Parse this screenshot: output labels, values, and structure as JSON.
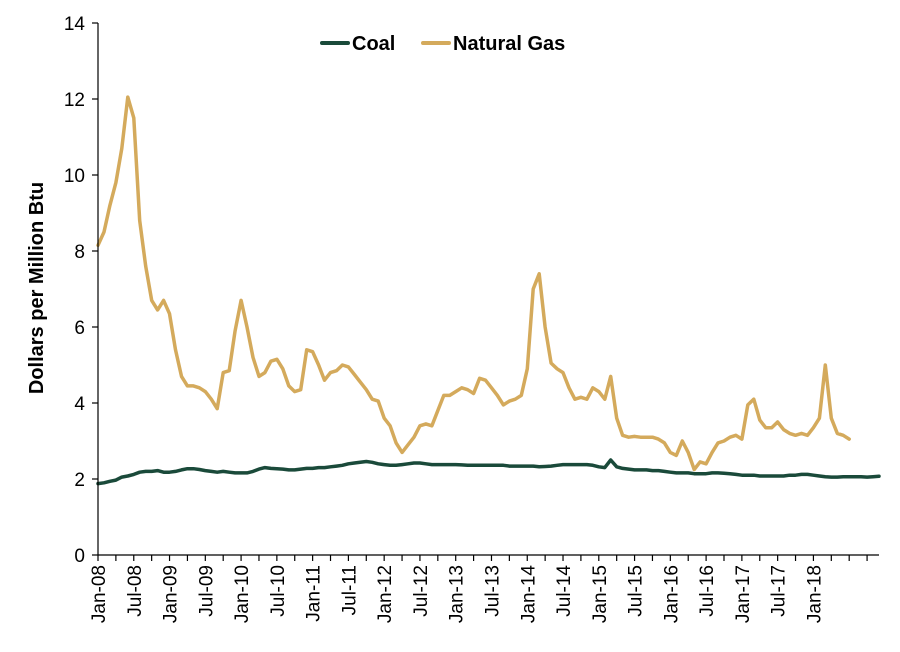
{
  "chart_data": {
    "type": "line",
    "title": "",
    "xlabel": "",
    "ylabel": "Dollars per Million Btu",
    "ylim": [
      0,
      14
    ],
    "yticks": [
      0,
      2,
      4,
      6,
      8,
      10,
      12,
      14
    ],
    "xticks": [
      "Jan-08",
      "Jul-08",
      "Jan-09",
      "Jul-09",
      "Jan-10",
      "Jul-10",
      "Jan-11",
      "Jul-11",
      "Jan-12",
      "Jul-12",
      "Jan-13",
      "Jul-13",
      "Jan-14",
      "Jul-14",
      "Jan-15",
      "Jul-15",
      "Jan-16",
      "Jul-16",
      "Jan-17",
      "Jul-17",
      "Jan-18"
    ],
    "x_start": "Jan-08",
    "x_end": "Jun-18",
    "grid": false,
    "legend_position": "top-center",
    "series": [
      {
        "name": "Coal",
        "color": "#1a4a3a",
        "values": [
          1.88,
          1.9,
          1.94,
          1.97,
          2.05,
          2.08,
          2.12,
          2.18,
          2.2,
          2.2,
          2.22,
          2.18,
          2.18,
          2.2,
          2.24,
          2.27,
          2.27,
          2.25,
          2.22,
          2.2,
          2.18,
          2.2,
          2.18,
          2.16,
          2.16,
          2.16,
          2.2,
          2.26,
          2.3,
          2.28,
          2.27,
          2.26,
          2.24,
          2.24,
          2.26,
          2.28,
          2.28,
          2.3,
          2.3,
          2.32,
          2.34,
          2.36,
          2.4,
          2.42,
          2.44,
          2.46,
          2.44,
          2.4,
          2.38,
          2.36,
          2.36,
          2.38,
          2.4,
          2.42,
          2.42,
          2.4,
          2.38,
          2.38,
          2.38,
          2.38,
          2.38,
          2.37,
          2.36,
          2.36,
          2.36,
          2.36,
          2.36,
          2.36,
          2.36,
          2.34,
          2.34,
          2.34,
          2.34,
          2.34,
          2.32,
          2.33,
          2.34,
          2.36,
          2.38,
          2.38,
          2.38,
          2.38,
          2.38,
          2.36,
          2.32,
          2.3,
          2.5,
          2.32,
          2.28,
          2.26,
          2.24,
          2.24,
          2.24,
          2.22,
          2.22,
          2.2,
          2.18,
          2.16,
          2.16,
          2.16,
          2.14,
          2.14,
          2.14,
          2.16,
          2.16,
          2.15,
          2.14,
          2.12,
          2.1,
          2.1,
          2.1,
          2.08,
          2.08,
          2.08,
          2.08,
          2.08,
          2.1,
          2.1,
          2.12,
          2.12,
          2.1,
          2.08,
          2.06,
          2.05,
          2.05,
          2.06,
          2.06,
          2.06,
          2.06,
          2.05,
          2.06,
          2.07
        ]
      },
      {
        "name": "Natural Gas",
        "color": "#d4aa5c",
        "values": [
          8.15,
          8.5,
          9.2,
          9.8,
          10.7,
          12.05,
          11.5,
          8.8,
          7.6,
          6.7,
          6.45,
          6.7,
          6.35,
          5.4,
          4.7,
          4.45,
          4.45,
          4.4,
          4.3,
          4.1,
          3.85,
          4.8,
          4.85,
          5.9,
          6.7,
          6.0,
          5.2,
          4.7,
          4.8,
          5.1,
          5.15,
          4.9,
          4.45,
          4.3,
          4.35,
          5.4,
          5.35,
          5.0,
          4.6,
          4.8,
          4.85,
          5.0,
          4.95,
          4.75,
          4.55,
          4.35,
          4.1,
          4.05,
          3.6,
          3.4,
          2.95,
          2.7,
          2.9,
          3.1,
          3.4,
          3.45,
          3.4,
          3.8,
          4.2,
          4.2,
          4.3,
          4.4,
          4.35,
          4.25,
          4.65,
          4.6,
          4.4,
          4.2,
          3.95,
          4.05,
          4.1,
          4.2,
          4.9,
          7.0,
          7.4,
          6.0,
          5.05,
          4.9,
          4.8,
          4.4,
          4.1,
          4.15,
          4.1,
          4.4,
          4.3,
          4.1,
          4.7,
          3.6,
          3.15,
          3.1,
          3.12,
          3.1,
          3.1,
          3.1,
          3.05,
          2.95,
          2.7,
          2.62,
          3.0,
          2.7,
          2.25,
          2.45,
          2.4,
          2.7,
          2.95,
          3.0,
          3.1,
          3.15,
          3.05,
          3.95,
          4.1,
          3.55,
          3.35,
          3.35,
          3.5,
          3.3,
          3.2,
          3.15,
          3.2,
          3.15,
          3.35,
          3.6,
          5.0,
          3.6,
          3.2,
          3.15,
          3.05
        ]
      }
    ]
  }
}
